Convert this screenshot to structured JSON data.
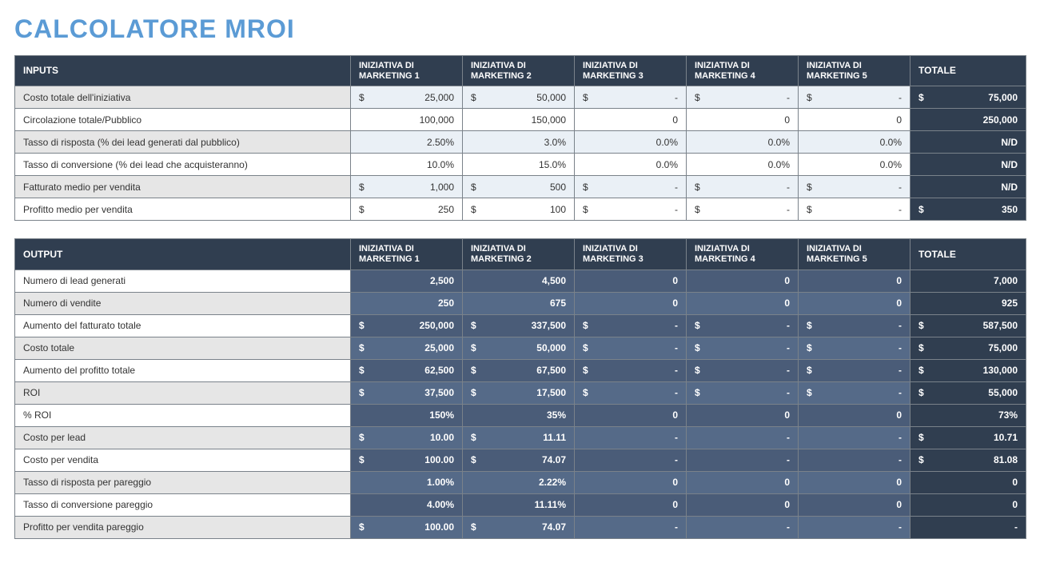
{
  "title": "CALCOLATORE MROI",
  "columns": {
    "label_inputs": "INPUTS",
    "label_output": "OUTPUT",
    "init": [
      "INIZIATIVA DI MARKETING 1",
      "INIZIATIVA DI MARKETING 2",
      "INIZIATIVA DI MARKETING 3",
      "INIZIATIVA DI MARKETING 4",
      "INIZIATIVA DI MARKETING 5"
    ],
    "total": "TOTALE"
  },
  "inputs": {
    "rows": [
      {
        "id": "costo-totale-iniziativa",
        "label": "Costo totale dell'iniziativa",
        "alt": true,
        "cells": [
          {
            "sign": "$",
            "val": "25,000"
          },
          {
            "sign": "$",
            "val": "50,000"
          },
          {
            "sign": "$",
            "val": "-"
          },
          {
            "sign": "$",
            "val": "-"
          },
          {
            "sign": "$",
            "val": "-"
          }
        ],
        "total": {
          "sign": "$",
          "val": "75,000"
        }
      },
      {
        "id": "circolazione",
        "label": "Circolazione totale/Pubblico",
        "alt": false,
        "cells": [
          {
            "sign": "",
            "val": "100,000"
          },
          {
            "sign": "",
            "val": "150,000"
          },
          {
            "sign": "",
            "val": "0"
          },
          {
            "sign": "",
            "val": "0"
          },
          {
            "sign": "",
            "val": "0"
          }
        ],
        "total": {
          "sign": "",
          "val": "250,000"
        }
      },
      {
        "id": "tasso-risposta",
        "label": "Tasso di risposta (% dei lead generati dal pubblico)",
        "alt": true,
        "cells": [
          {
            "sign": "",
            "val": "2.50%"
          },
          {
            "sign": "",
            "val": "3.0%"
          },
          {
            "sign": "",
            "val": "0.0%"
          },
          {
            "sign": "",
            "val": "0.0%"
          },
          {
            "sign": "",
            "val": "0.0%"
          }
        ],
        "total": {
          "sign": "",
          "val": "N/D"
        }
      },
      {
        "id": "tasso-conversione",
        "label": "Tasso di conversione (% dei lead che acquisteranno)",
        "alt": false,
        "cells": [
          {
            "sign": "",
            "val": "10.0%"
          },
          {
            "sign": "",
            "val": "15.0%"
          },
          {
            "sign": "",
            "val": "0.0%"
          },
          {
            "sign": "",
            "val": "0.0%"
          },
          {
            "sign": "",
            "val": "0.0%"
          }
        ],
        "total": {
          "sign": "",
          "val": "N/D"
        }
      },
      {
        "id": "fatturato-medio",
        "label": "Fatturato medio per vendita",
        "alt": true,
        "cells": [
          {
            "sign": "$",
            "val": "1,000"
          },
          {
            "sign": "$",
            "val": "500"
          },
          {
            "sign": "$",
            "val": "-"
          },
          {
            "sign": "$",
            "val": "-"
          },
          {
            "sign": "$",
            "val": "-"
          }
        ],
        "total": {
          "sign": "",
          "val": "N/D"
        }
      },
      {
        "id": "profitto-medio",
        "label": "Profitto medio per vendita",
        "alt": false,
        "cells": [
          {
            "sign": "$",
            "val": "250"
          },
          {
            "sign": "$",
            "val": "100"
          },
          {
            "sign": "$",
            "val": "-"
          },
          {
            "sign": "$",
            "val": "-"
          },
          {
            "sign": "$",
            "val": "-"
          }
        ],
        "total": {
          "sign": "$",
          "val": "350"
        }
      }
    ]
  },
  "outputs": {
    "rows": [
      {
        "id": "lead-generati",
        "label": "Numero di lead generati",
        "alt": false,
        "cells": [
          {
            "sign": "",
            "val": "2,500"
          },
          {
            "sign": "",
            "val": "4,500"
          },
          {
            "sign": "",
            "val": "0"
          },
          {
            "sign": "",
            "val": "0"
          },
          {
            "sign": "",
            "val": "0"
          }
        ],
        "total": {
          "sign": "",
          "val": "7,000"
        }
      },
      {
        "id": "numero-vendite",
        "label": "Numero di vendite",
        "alt": true,
        "cells": [
          {
            "sign": "",
            "val": "250"
          },
          {
            "sign": "",
            "val": "675"
          },
          {
            "sign": "",
            "val": "0"
          },
          {
            "sign": "",
            "val": "0"
          },
          {
            "sign": "",
            "val": "0"
          }
        ],
        "total": {
          "sign": "",
          "val": "925"
        }
      },
      {
        "id": "aumento-fatturato",
        "label": "Aumento del fatturato totale",
        "alt": false,
        "cells": [
          {
            "sign": "$",
            "val": "250,000"
          },
          {
            "sign": "$",
            "val": "337,500"
          },
          {
            "sign": "$",
            "val": "-"
          },
          {
            "sign": "$",
            "val": "-"
          },
          {
            "sign": "$",
            "val": "-"
          }
        ],
        "total": {
          "sign": "$",
          "val": "587,500"
        }
      },
      {
        "id": "costo-totale",
        "label": "Costo totale",
        "alt": true,
        "cells": [
          {
            "sign": "$",
            "val": "25,000"
          },
          {
            "sign": "$",
            "val": "50,000"
          },
          {
            "sign": "$",
            "val": "-"
          },
          {
            "sign": "$",
            "val": "-"
          },
          {
            "sign": "$",
            "val": "-"
          }
        ],
        "total": {
          "sign": "$",
          "val": "75,000"
        }
      },
      {
        "id": "aumento-profitto",
        "label": "Aumento del profitto totale",
        "alt": false,
        "cells": [
          {
            "sign": "$",
            "val": "62,500"
          },
          {
            "sign": "$",
            "val": "67,500"
          },
          {
            "sign": "$",
            "val": "-"
          },
          {
            "sign": "$",
            "val": "-"
          },
          {
            "sign": "$",
            "val": "-"
          }
        ],
        "total": {
          "sign": "$",
          "val": "130,000"
        }
      },
      {
        "id": "roi",
        "label": "ROI",
        "alt": true,
        "cells": [
          {
            "sign": "$",
            "val": "37,500"
          },
          {
            "sign": "$",
            "val": "17,500"
          },
          {
            "sign": "$",
            "val": "-"
          },
          {
            "sign": "$",
            "val": "-"
          },
          {
            "sign": "$",
            "val": "-"
          }
        ],
        "total": {
          "sign": "$",
          "val": "55,000"
        }
      },
      {
        "id": "pct-roi",
        "label": "% ROI",
        "alt": false,
        "cells": [
          {
            "sign": "",
            "val": "150%"
          },
          {
            "sign": "",
            "val": "35%"
          },
          {
            "sign": "",
            "val": "0"
          },
          {
            "sign": "",
            "val": "0"
          },
          {
            "sign": "",
            "val": "0"
          }
        ],
        "total": {
          "sign": "",
          "val": "73%"
        }
      },
      {
        "id": "costo-per-lead",
        "label": "Costo per lead",
        "alt": true,
        "cells": [
          {
            "sign": "$",
            "val": "10.00"
          },
          {
            "sign": "$",
            "val": "11.11"
          },
          {
            "sign": "",
            "val": "-"
          },
          {
            "sign": "",
            "val": "-"
          },
          {
            "sign": "",
            "val": "-"
          }
        ],
        "total": {
          "sign": "$",
          "val": "10.71"
        }
      },
      {
        "id": "costo-per-vendita",
        "label": "Costo per vendita",
        "alt": false,
        "cells": [
          {
            "sign": "$",
            "val": "100.00"
          },
          {
            "sign": "$",
            "val": "74.07"
          },
          {
            "sign": "",
            "val": "-"
          },
          {
            "sign": "",
            "val": "-"
          },
          {
            "sign": "",
            "val": "-"
          }
        ],
        "total": {
          "sign": "$",
          "val": "81.08"
        }
      },
      {
        "id": "risposta-pareggio",
        "label": "Tasso di risposta per pareggio",
        "alt": true,
        "cells": [
          {
            "sign": "",
            "val": "1.00%"
          },
          {
            "sign": "",
            "val": "2.22%"
          },
          {
            "sign": "",
            "val": "0"
          },
          {
            "sign": "",
            "val": "0"
          },
          {
            "sign": "",
            "val": "0"
          }
        ],
        "total": {
          "sign": "",
          "val": "0"
        }
      },
      {
        "id": "conversione-pareggio",
        "label": "Tasso di conversione pareggio",
        "alt": false,
        "cells": [
          {
            "sign": "",
            "val": "4.00%"
          },
          {
            "sign": "",
            "val": "11.11%"
          },
          {
            "sign": "",
            "val": "0"
          },
          {
            "sign": "",
            "val": "0"
          },
          {
            "sign": "",
            "val": "0"
          }
        ],
        "total": {
          "sign": "",
          "val": "0"
        }
      },
      {
        "id": "profitto-vendita-pareggio",
        "label": "Profitto per vendita pareggio",
        "alt": true,
        "cells": [
          {
            "sign": "$",
            "val": "100.00"
          },
          {
            "sign": "$",
            "val": "74.07"
          },
          {
            "sign": "",
            "val": "-"
          },
          {
            "sign": "",
            "val": "-"
          },
          {
            "sign": "",
            "val": "-"
          }
        ],
        "total": {
          "sign": "",
          "val": "-"
        }
      }
    ]
  },
  "style": {
    "title_color": "#5b9bd5",
    "header_bg": "#303e50",
    "input_alt_bg": "#eaf0f6",
    "output_cell_a": "#4a5c78",
    "output_cell_b": "#556a88",
    "border_color": "#7a828a"
  }
}
